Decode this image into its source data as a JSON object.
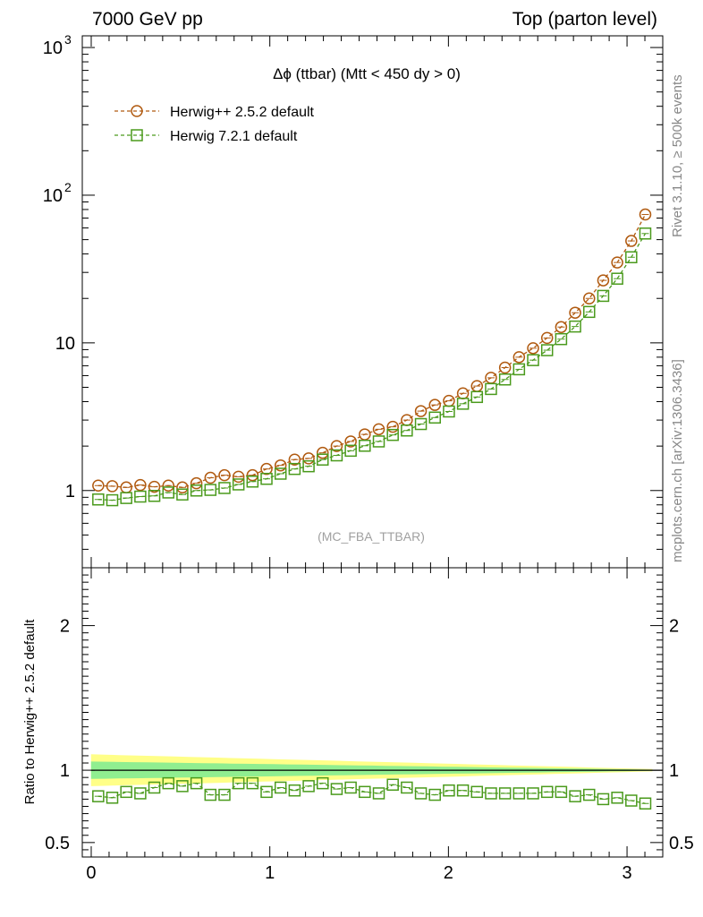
{
  "header": {
    "left": "7000 GeV pp",
    "right": "Top (parton level)"
  },
  "side_text": {
    "rivet": "Rivet 3.1.10, ≥ 500k events",
    "mcplots": "mcplots.cern.ch [arXiv:1306.3436]"
  },
  "analysis_tag": "(MC_FBA_TTBAR)",
  "chart_data": [
    {
      "type": "line",
      "title": "Δϕ (ttbar) (Mtt < 450 dy > 0)",
      "log_y": true,
      "xlim": [
        -0.05,
        3.2
      ],
      "ylim": [
        0.3,
        1200
      ],
      "x_ticks": [
        0,
        1,
        2,
        3
      ],
      "y_ticks": [
        {
          "v": 1,
          "base": "1",
          "exp": ""
        },
        {
          "v": 10,
          "base": "10",
          "exp": ""
        },
        {
          "v": 100,
          "base": "10",
          "exp": "2"
        },
        {
          "v": 1000,
          "base": "10",
          "exp": "3"
        }
      ],
      "legend_position": "top-left",
      "x": [
        0.0393,
        0.1178,
        0.1963,
        0.2749,
        0.3534,
        0.432,
        0.5105,
        0.589,
        0.6676,
        0.7461,
        0.8247,
        0.9032,
        0.9817,
        1.0603,
        1.1388,
        1.2174,
        1.2959,
        1.3744,
        1.453,
        1.5315,
        1.6101,
        1.6886,
        1.7671,
        1.8457,
        1.9242,
        2.0028,
        2.0813,
        2.1598,
        2.2384,
        2.3169,
        2.3955,
        2.474,
        2.5525,
        2.6311,
        2.7096,
        2.7882,
        2.8667,
        2.9452,
        3.0238,
        3.1023
      ],
      "series": [
        {
          "name": "Herwig++ 2.5.2 default",
          "color": "#b05a10",
          "marker": "circle",
          "values": [
            1.08,
            1.07,
            1.05,
            1.09,
            1.06,
            1.08,
            1.05,
            1.12,
            1.22,
            1.27,
            1.24,
            1.27,
            1.4,
            1.48,
            1.62,
            1.65,
            1.8,
            2.0,
            2.15,
            2.4,
            2.6,
            2.7,
            3.0,
            3.45,
            3.8,
            4.05,
            4.55,
            5.1,
            5.8,
            6.8,
            8.0,
            9.2,
            10.8,
            12.8,
            16.0,
            20.0,
            26.5,
            35.0,
            49.0,
            74.0
          ]
        },
        {
          "name": "Herwig 7.2.1 default",
          "color": "#4a9a1c",
          "marker": "square",
          "values": [
            0.87,
            0.86,
            0.89,
            0.91,
            0.92,
            0.97,
            0.94,
            1.0,
            1.01,
            1.04,
            1.1,
            1.15,
            1.2,
            1.3,
            1.4,
            1.46,
            1.62,
            1.73,
            1.86,
            2.01,
            2.15,
            2.38,
            2.55,
            2.82,
            3.12,
            3.43,
            3.87,
            4.3,
            4.87,
            5.65,
            6.62,
            7.64,
            8.92,
            10.6,
            12.9,
            16.2,
            20.8,
            27.2,
            38.0,
            55.0
          ]
        }
      ]
    },
    {
      "type": "line",
      "ylabel": "Ratio to Herwig++ 2.5.2 default",
      "xlim": [
        -0.05,
        3.2
      ],
      "ylim": [
        0.4,
        2.4
      ],
      "x_ticks": [
        0,
        1,
        2,
        3
      ],
      "y_ticks": [
        0.5,
        1,
        2
      ],
      "reference": 1,
      "band_inner": {
        "color": "#90ee90",
        "halfwidth_start": 0.06,
        "halfwidth_end": 0.004
      },
      "band_outer": {
        "color": "#ffff88",
        "halfwidth_start": 0.11,
        "halfwidth_end": 0.008
      },
      "series": [
        {
          "name": "Herwig 7.2.1 default",
          "color": "#4a9a1c",
          "marker": "square",
          "values": [
            0.82,
            0.81,
            0.85,
            0.84,
            0.88,
            0.91,
            0.89,
            0.91,
            0.83,
            0.83,
            0.91,
            0.91,
            0.85,
            0.88,
            0.86,
            0.89,
            0.91,
            0.87,
            0.88,
            0.85,
            0.84,
            0.9,
            0.88,
            0.84,
            0.83,
            0.86,
            0.86,
            0.85,
            0.84,
            0.84,
            0.84,
            0.84,
            0.85,
            0.85,
            0.82,
            0.83,
            0.8,
            0.81,
            0.79,
            0.77
          ]
        }
      ]
    }
  ]
}
